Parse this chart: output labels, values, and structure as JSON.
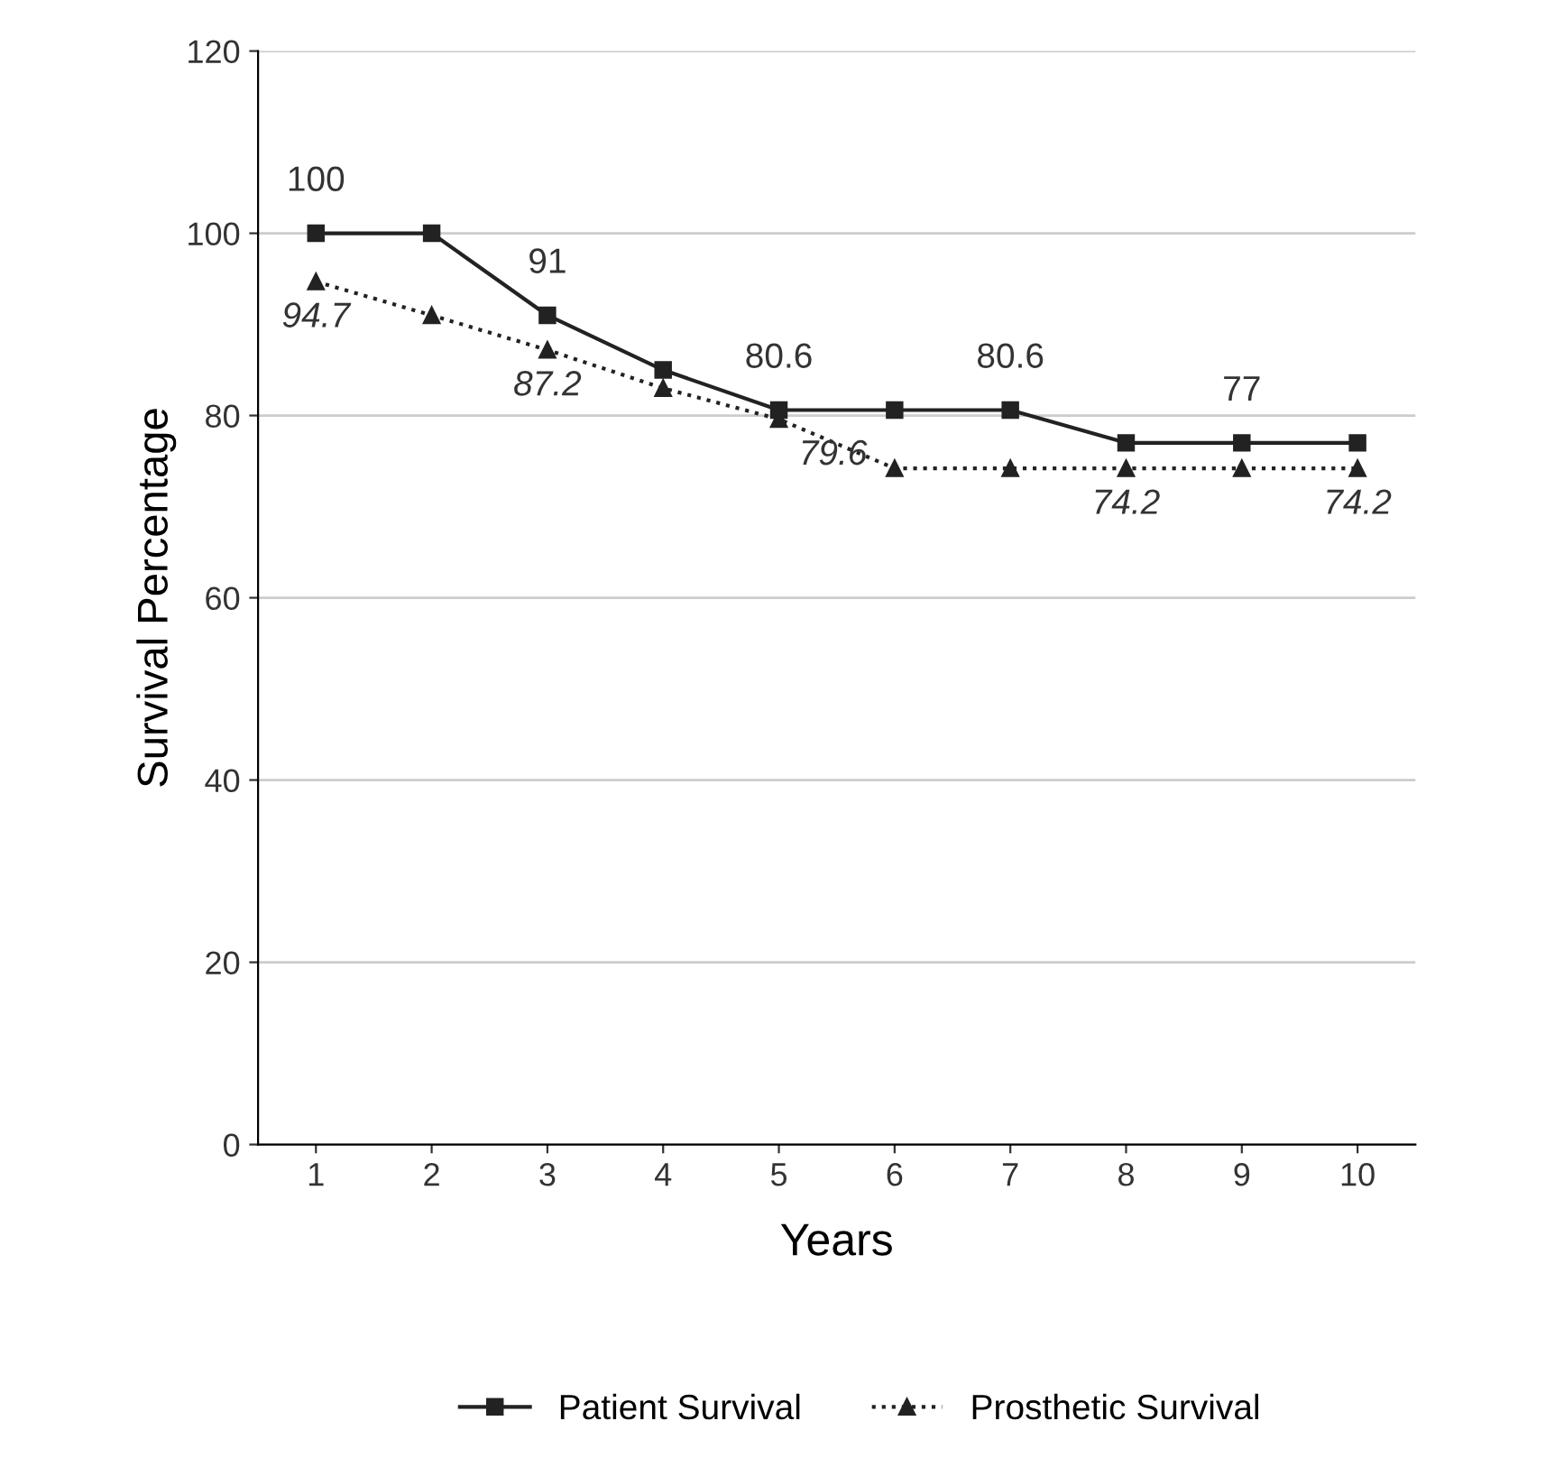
{
  "chart_data": {
    "type": "line",
    "xlabel": "Years",
    "ylabel": "Survival Percentage",
    "categories": [
      "1",
      "2",
      "3",
      "4",
      "5",
      "6",
      "7",
      "8",
      "9",
      "10"
    ],
    "series": [
      {
        "name": "Patient Survival",
        "color": "#222222",
        "marker": "square",
        "line_style": "solid",
        "values": [
          100,
          100,
          91,
          85,
          80.6,
          80.6,
          80.6,
          77,
          77,
          77
        ],
        "value_labels": [
          "100",
          null,
          "91",
          null,
          "80.6",
          null,
          "80.6",
          null,
          "77",
          null
        ]
      },
      {
        "name": "Prosthetic Survival",
        "color": "#222222",
        "marker": "triangle",
        "line_style": "dotted",
        "values": [
          94.7,
          91,
          87.2,
          83,
          79.6,
          74.2,
          74.2,
          74.2,
          74.2,
          74.2
        ],
        "value_labels": [
          "94.7",
          null,
          "87.2",
          null,
          "79.6",
          null,
          null,
          "74.2",
          null,
          "74.2"
        ]
      }
    ],
    "ylim": [
      0,
      120
    ],
    "yticks": [
      0,
      20,
      40,
      60,
      80,
      100,
      120
    ],
    "grid": "y",
    "legend": "bottom"
  }
}
